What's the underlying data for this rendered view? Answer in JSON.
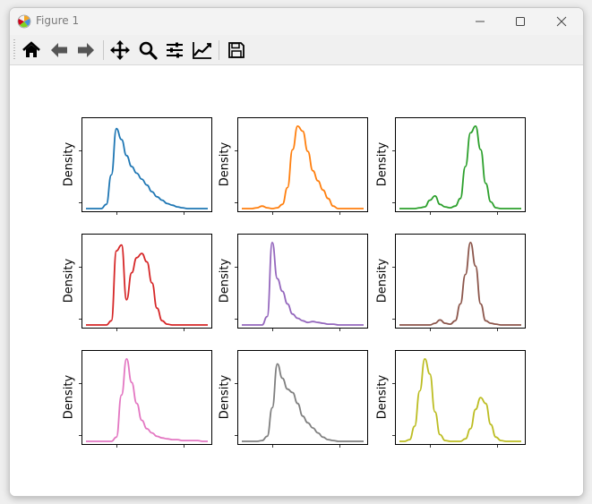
{
  "window": {
    "title": "Figure 1",
    "minimize_label": "─",
    "maximize_label": "☐",
    "close_label": "✕"
  },
  "toolbar": {
    "tools": [
      {
        "name": "home-icon",
        "title": "Home"
      },
      {
        "name": "back-icon",
        "title": "Back"
      },
      {
        "name": "forward-icon",
        "title": "Forward"
      },
      {
        "name": "pan-icon",
        "title": "Pan"
      },
      {
        "name": "zoom-icon",
        "title": "Zoom"
      },
      {
        "name": "subplots-icon",
        "title": "Subplots"
      },
      {
        "name": "edit-axis-icon",
        "title": "Customize"
      },
      {
        "name": "save-icon",
        "title": "Save"
      }
    ]
  },
  "chart_data": [
    {
      "type": "line",
      "series": [
        {
          "color": "#1f77b4",
          "values": [
            0,
            0,
            0,
            0,
            0.05,
            0.4,
            0.95,
            0.82,
            0.63,
            0.5,
            0.42,
            0.35,
            0.28,
            0.2,
            0.14,
            0.1,
            0.06,
            0.04,
            0.02,
            0.01,
            0,
            0,
            0,
            0,
            0
          ]
        }
      ],
      "ylabel": "Density"
    },
    {
      "type": "line",
      "series": [
        {
          "color": "#ff7f0e",
          "values": [
            0,
            0,
            0,
            0.01,
            0.03,
            0.01,
            0,
            0.01,
            0.05,
            0.25,
            0.7,
            0.98,
            0.92,
            0.68,
            0.45,
            0.33,
            0.22,
            0.12,
            0.03,
            0,
            0,
            0,
            0,
            0,
            0
          ]
        }
      ],
      "ylabel": "Density"
    },
    {
      "type": "line",
      "series": [
        {
          "color": "#2ca02c",
          "values": [
            0,
            0,
            0,
            0,
            0.01,
            0.02,
            0.1,
            0.15,
            0.05,
            0.02,
            0.01,
            0.03,
            0.12,
            0.5,
            0.9,
            0.98,
            0.7,
            0.3,
            0.08,
            0.01,
            0,
            0,
            0,
            0,
            0
          ]
        }
      ],
      "ylabel": "Density"
    },
    {
      "type": "line",
      "series": [
        {
          "color": "#d62728",
          "values": [
            0,
            0,
            0,
            0,
            0,
            0.05,
            0.88,
            0.95,
            0.3,
            0.62,
            0.8,
            0.85,
            0.75,
            0.5,
            0.2,
            0.05,
            0.01,
            0,
            0,
            0,
            0,
            0,
            0,
            0,
            0
          ]
        }
      ],
      "ylabel": "Density"
    },
    {
      "type": "line",
      "series": [
        {
          "color": "#9467bd",
          "values": [
            0,
            0,
            0,
            0,
            0,
            0.1,
            0.98,
            0.55,
            0.4,
            0.25,
            0.13,
            0.08,
            0.05,
            0.03,
            0.04,
            0.03,
            0.02,
            0.01,
            0.01,
            0,
            0,
            0,
            0,
            0,
            0
          ]
        }
      ],
      "ylabel": "Density"
    },
    {
      "type": "line",
      "series": [
        {
          "color": "#8c564b",
          "values": [
            0,
            0,
            0,
            0,
            0,
            0,
            0,
            0.02,
            0.06,
            0.02,
            0.01,
            0.05,
            0.25,
            0.6,
            0.98,
            0.7,
            0.25,
            0.05,
            0.02,
            0.01,
            0,
            0,
            0,
            0,
            0
          ]
        }
      ],
      "ylabel": "Density"
    },
    {
      "type": "line",
      "series": [
        {
          "color": "#e377c2",
          "values": [
            0,
            0,
            0,
            0,
            0,
            0,
            0.05,
            0.55,
            0.98,
            0.7,
            0.45,
            0.25,
            0.15,
            0.1,
            0.06,
            0.04,
            0.03,
            0.02,
            0.02,
            0.01,
            0.01,
            0.01,
            0.01,
            0,
            0
          ]
        }
      ],
      "ylabel": "Density"
    },
    {
      "type": "line",
      "series": [
        {
          "color": "#7f7f7f",
          "values": [
            0,
            0,
            0,
            0,
            0.01,
            0.06,
            0.4,
            0.92,
            0.75,
            0.62,
            0.58,
            0.45,
            0.3,
            0.22,
            0.16,
            0.1,
            0.05,
            0.02,
            0.01,
            0,
            0,
            0,
            0,
            0,
            0
          ]
        }
      ],
      "ylabel": "Density"
    },
    {
      "type": "line",
      "series": [
        {
          "color": "#bcbd22",
          "values": [
            0,
            0,
            0.02,
            0.18,
            0.6,
            0.98,
            0.8,
            0.35,
            0.08,
            0.01,
            0,
            0,
            0,
            0.03,
            0.15,
            0.38,
            0.52,
            0.45,
            0.2,
            0.05,
            0.01,
            0,
            0,
            0,
            0
          ]
        }
      ],
      "ylabel": "Density"
    }
  ]
}
